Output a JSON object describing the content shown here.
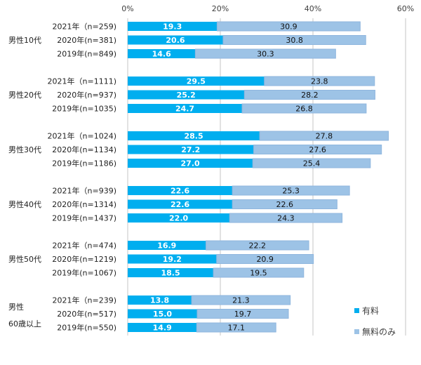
{
  "chart_data": {
    "type": "bar",
    "orientation": "horizontal",
    "stacked": true,
    "title": "",
    "xlabel": "",
    "ylabel": "",
    "xlim": [
      0,
      60
    ],
    "x_ticks": [
      "0%",
      "20%",
      "40%",
      "60%"
    ],
    "x_tick_values": [
      0,
      20,
      40,
      60
    ],
    "grid": true,
    "legend_position": "bottom-right",
    "colors": {
      "paid": "#00AEEF",
      "free": "#9DC3E6"
    },
    "series": [
      {
        "key": "paid",
        "name": "有料"
      },
      {
        "key": "free",
        "name": "無料のみ"
      }
    ],
    "groups": [
      {
        "label": [
          "男性10代"
        ],
        "rows": [
          {
            "label": "2021年（n=259)",
            "paid": 19.3,
            "free": 30.9
          },
          {
            "label": "2020年(n=381)",
            "paid": 20.6,
            "free": 30.8
          },
          {
            "label": "2019年(n=849)",
            "paid": 14.6,
            "free": 30.3
          }
        ]
      },
      {
        "label": [
          "男性20代"
        ],
        "rows": [
          {
            "label": "2021年（n=1111)",
            "paid": 29.5,
            "free": 23.8
          },
          {
            "label": "2020年(n=937)",
            "paid": 25.2,
            "free": 28.2
          },
          {
            "label": "2019年(n=1035)",
            "paid": 24.7,
            "free": 26.8
          }
        ]
      },
      {
        "label": [
          "男性30代"
        ],
        "rows": [
          {
            "label": "2021年（n=1024)",
            "paid": 28.5,
            "free": 27.8
          },
          {
            "label": "2020年(n=1134)",
            "paid": 27.2,
            "free": 27.6
          },
          {
            "label": "2019年(n=1186)",
            "paid": 27.0,
            "free": 25.4
          }
        ]
      },
      {
        "label": [
          "男性40代"
        ],
        "rows": [
          {
            "label": "2021年（n=939)",
            "paid": 22.6,
            "free": 25.3
          },
          {
            "label": "2020年(n=1314)",
            "paid": 22.6,
            "free": 22.6
          },
          {
            "label": "2019年(n=1437)",
            "paid": 22.0,
            "free": 24.3
          }
        ]
      },
      {
        "label": [
          "男性50代"
        ],
        "rows": [
          {
            "label": "2021年（n=474)",
            "paid": 16.9,
            "free": 22.2
          },
          {
            "label": "2020年(n=1219)",
            "paid": 19.2,
            "free": 20.9
          },
          {
            "label": "2019年(n=1067)",
            "paid": 18.5,
            "free": 19.5
          }
        ]
      },
      {
        "label": [
          "男性",
          "60歳以上"
        ],
        "rows": [
          {
            "label": "2021年（n=239)",
            "paid": 13.8,
            "free": 21.3
          },
          {
            "label": "2020年(n=517)",
            "paid": 15.0,
            "free": 19.7
          },
          {
            "label": "2019年(n=550)",
            "paid": 14.9,
            "free": 17.1
          }
        ]
      }
    ]
  }
}
